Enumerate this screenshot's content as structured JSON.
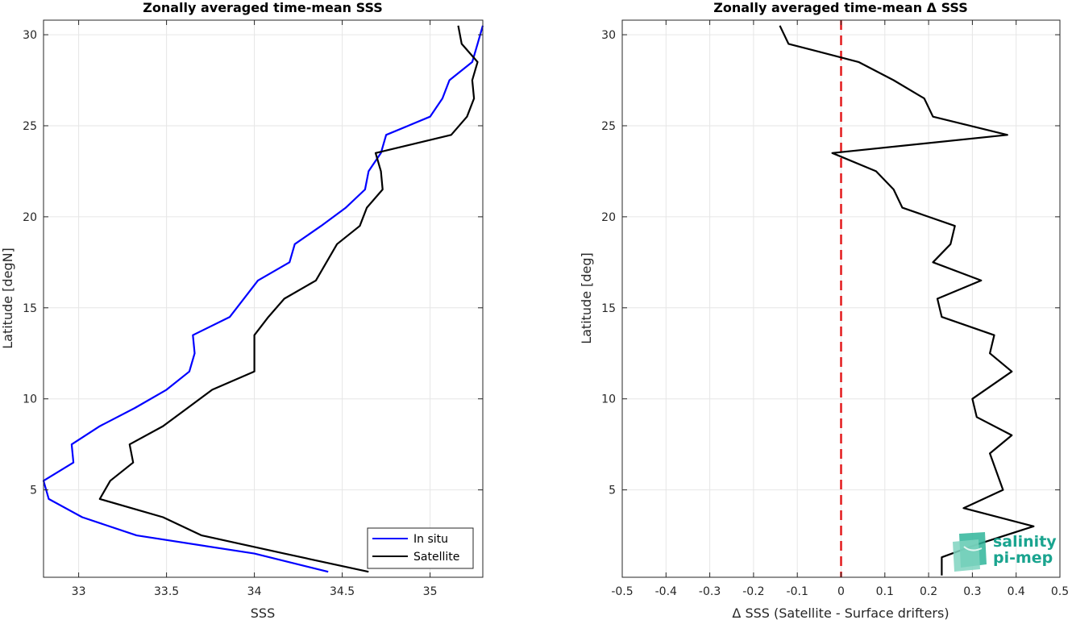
{
  "chart_data": [
    {
      "type": "line",
      "title": "Zonally averaged time-mean SSS",
      "xlabel": "SSS",
      "ylabel": "Latitude [degN]",
      "xlim": [
        32.8,
        35.3
      ],
      "ylim": [
        0.2,
        30.8
      ],
      "xticks": [
        33,
        33.5,
        34,
        34.5,
        35
      ],
      "xtick_labels": [
        "33",
        "33.5",
        "34",
        "34.5",
        "35"
      ],
      "yticks": [
        5,
        10,
        15,
        20,
        25,
        30
      ],
      "ytick_labels": [
        "5",
        "10",
        "15",
        "20",
        "25",
        "30"
      ],
      "grid": true,
      "legend_position": "bottom-right",
      "series": [
        {
          "name": "In situ",
          "color": "#0000ff",
          "points": [
            [
              34.42,
              0.5
            ],
            [
              34.0,
              1.5
            ],
            [
              33.33,
              2.5
            ],
            [
              33.02,
              3.5
            ],
            [
              32.83,
              4.5
            ],
            [
              32.8,
              5.5
            ],
            [
              32.97,
              6.5
            ],
            [
              32.96,
              7.5
            ],
            [
              33.12,
              8.5
            ],
            [
              33.32,
              9.5
            ],
            [
              33.5,
              10.5
            ],
            [
              33.63,
              11.5
            ],
            [
              33.66,
              12.5
            ],
            [
              33.65,
              13.5
            ],
            [
              33.86,
              14.5
            ],
            [
              34.02,
              16.5
            ],
            [
              34.2,
              17.5
            ],
            [
              34.23,
              18.5
            ],
            [
              34.38,
              19.5
            ],
            [
              34.52,
              20.5
            ],
            [
              34.63,
              21.5
            ],
            [
              34.65,
              22.5
            ],
            [
              34.72,
              23.5
            ],
            [
              34.75,
              24.5
            ],
            [
              35.0,
              25.5
            ],
            [
              35.07,
              26.5
            ],
            [
              35.11,
              27.5
            ],
            [
              35.24,
              28.5
            ],
            [
              35.27,
              29.5
            ],
            [
              35.3,
              30.5
            ]
          ]
        },
        {
          "name": "Satellite",
          "color": "#000000",
          "points": [
            [
              34.65,
              0.5
            ],
            [
              34.17,
              1.5
            ],
            [
              33.7,
              2.5
            ],
            [
              33.48,
              3.5
            ],
            [
              33.12,
              4.5
            ],
            [
              33.18,
              5.5
            ],
            [
              33.31,
              6.5
            ],
            [
              33.29,
              7.5
            ],
            [
              33.48,
              8.5
            ],
            [
              33.62,
              9.5
            ],
            [
              33.76,
              10.5
            ],
            [
              34.0,
              11.5
            ],
            [
              34.0,
              12.5
            ],
            [
              34.0,
              13.5
            ],
            [
              34.08,
              14.5
            ],
            [
              34.17,
              15.5
            ],
            [
              34.35,
              16.5
            ],
            [
              34.47,
              18.5
            ],
            [
              34.6,
              19.5
            ],
            [
              34.64,
              20.5
            ],
            [
              34.73,
              21.5
            ],
            [
              34.72,
              22.5
            ],
            [
              34.69,
              23.5
            ],
            [
              35.12,
              24.5
            ],
            [
              35.21,
              25.5
            ],
            [
              35.25,
              26.5
            ],
            [
              35.24,
              27.5
            ],
            [
              35.27,
              28.5
            ],
            [
              35.18,
              29.5
            ],
            [
              35.16,
              30.5
            ]
          ]
        }
      ]
    },
    {
      "type": "line",
      "title": "Zonally averaged time-mean Δ SSS",
      "xlabel": "Δ SSS (Satellite - Surface drifters)",
      "ylabel": "Latitude [deg]",
      "xlim": [
        -0.5,
        0.5
      ],
      "ylim": [
        0.2,
        30.8
      ],
      "xticks": [
        -0.5,
        -0.4,
        -0.3,
        -0.2,
        -0.1,
        0,
        0.1,
        0.2,
        0.3,
        0.4,
        0.5
      ],
      "xtick_labels": [
        "-0.5",
        "-0.4",
        "-0.3",
        "-0.2",
        "-0.1",
        "0",
        "0.1",
        "0.2",
        "0.3",
        "0.4",
        "0.5"
      ],
      "yticks": [
        5,
        10,
        15,
        20,
        25,
        30
      ],
      "ytick_labels": [
        "5",
        "10",
        "15",
        "20",
        "25",
        "30"
      ],
      "grid": true,
      "reference_line": {
        "x": 0,
        "color": "#e31a1c",
        "style": "dashed"
      },
      "series": [
        {
          "color": "#000000",
          "points": [
            [
              0.23,
              0.3
            ],
            [
              0.23,
              1.3
            ],
            [
              0.31,
              2.0
            ],
            [
              0.44,
              3.0
            ],
            [
              0.28,
              4.0
            ],
            [
              0.37,
              5.0
            ],
            [
              0.34,
              7.0
            ],
            [
              0.39,
              8.0
            ],
            [
              0.31,
              9.0
            ],
            [
              0.3,
              10.0
            ],
            [
              0.39,
              11.5
            ],
            [
              0.34,
              12.5
            ],
            [
              0.35,
              13.5
            ],
            [
              0.23,
              14.5
            ],
            [
              0.22,
              15.5
            ],
            [
              0.32,
              16.5
            ],
            [
              0.21,
              17.5
            ],
            [
              0.25,
              18.5
            ],
            [
              0.26,
              19.5
            ],
            [
              0.14,
              20.5
            ],
            [
              0.12,
              21.5
            ],
            [
              0.08,
              22.5
            ],
            [
              -0.02,
              23.5
            ],
            [
              0.38,
              24.5
            ],
            [
              0.21,
              25.5
            ],
            [
              0.19,
              26.5
            ],
            [
              0.12,
              27.5
            ],
            [
              0.04,
              28.5
            ],
            [
              -0.12,
              29.5
            ],
            [
              -0.14,
              30.5
            ]
          ]
        }
      ]
    }
  ],
  "logo": {
    "line1": "salinity",
    "line2": "pi-mep"
  }
}
